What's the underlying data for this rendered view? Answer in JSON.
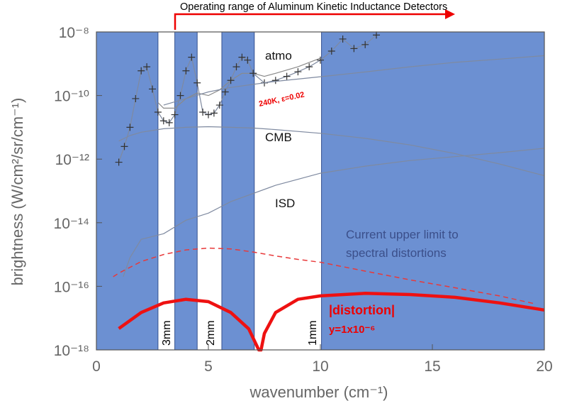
{
  "chart_data": {
    "type": "line",
    "xlabel": "wavenumber (cm⁻¹)",
    "ylabel": "brightness (W/cm²/sr/cm⁻¹)",
    "xlim": [
      0,
      20
    ],
    "xticks": [
      0,
      5,
      10,
      15,
      20
    ],
    "ylim": [
      1e-18,
      1e-08
    ],
    "log_y": true,
    "yticks": [
      {
        "value": 1e-08,
        "label": "10⁻⁸"
      },
      {
        "value": 1e-10,
        "label": "10⁻¹⁰"
      },
      {
        "value": 1e-12,
        "label": "10⁻¹²"
      },
      {
        "value": 1e-14,
        "label": "10⁻¹⁴"
      },
      {
        "value": 1e-16,
        "label": "10⁻¹⁶"
      },
      {
        "value": 1e-18,
        "label": "10⁻¹⁸"
      }
    ],
    "bands": {
      "color": "#6c90d2",
      "ranges": [
        [
          0,
          2.75
        ],
        [
          3.5,
          4.5
        ],
        [
          5.6,
          7.05
        ],
        [
          10.05,
          20
        ]
      ]
    },
    "band_labels": [
      "3mm",
      "2mm",
      "1mm"
    ],
    "annotations": [
      "Operating range of Aluminum Kinetic Inductance Detectors",
      "atmo",
      "CMB",
      "ISD",
      "Current upper limit to",
      "spectral distortions",
      "240K, ε=0.02",
      "|distortion|",
      "y=1x10⁻⁶"
    ],
    "series": [
      {
        "color": "#8a8a8a",
        "width": 1.2,
        "x": [
          2.75,
          3,
          3.5,
          4,
          4.5,
          5,
          5.5,
          6,
          6.5,
          7,
          7.5,
          8,
          9,
          10
        ],
        "values": [
          6e-11,
          4e-11,
          4e-11,
          8e-11,
          1.2e-10,
          1e-10,
          1.5e-10,
          3e-10,
          5e-10,
          5e-10,
          4e-10,
          5e-10,
          8e-10,
          1.5e-09
        ]
      },
      {
        "color": "#7f8aa0",
        "width": 1.2,
        "marker": "+",
        "x": [
          1,
          1.25,
          1.5,
          1.75,
          2,
          2.25,
          2.5,
          2.75,
          3,
          3.25,
          3.5,
          3.75,
          4,
          4.25,
          4.5,
          4.75,
          5,
          5.25,
          5.5,
          5.75,
          6,
          6.25,
          6.5,
          6.75,
          7,
          7.5,
          8,
          8.5,
          9,
          9.5,
          10,
          10.5,
          11,
          11.5,
          12,
          12.5
        ],
        "values": [
          8e-13,
          2.5e-12,
          1e-11,
          8e-11,
          6e-10,
          8e-10,
          1.6e-10,
          3e-11,
          1.6e-11,
          1.4e-11,
          2.5e-11,
          1e-10,
          6e-10,
          1.6e-09,
          2.5e-10,
          3e-11,
          2.5e-11,
          2.8e-11,
          5e-11,
          1.3e-10,
          3e-10,
          8e-10,
          1.6e-09,
          1.3e-09,
          5e-10,
          2.5e-10,
          3e-10,
          4e-10,
          5.6e-10,
          8e-10,
          1.3e-09,
          2.5e-09,
          6e-09,
          3e-09,
          4e-09,
          8e-09
        ]
      },
      {
        "color": "#7f8aa0",
        "width": 1.2,
        "x": [
          3,
          4,
          5,
          6,
          8,
          10,
          12,
          14,
          16,
          18,
          20
        ],
        "values": [
          5e-11,
          8e-11,
          1.3e-10,
          1.8e-10,
          2.8e-10,
          3.9e-10,
          5.5e-10,
          8e-10,
          1.1e-09,
          1.4e-09,
          1.8e-09
        ]
      },
      {
        "color": "#7f8aa0",
        "width": 1.2,
        "x": [
          1,
          1.5,
          2,
          3,
          4,
          5,
          6,
          7,
          8,
          10,
          12,
          14,
          16,
          18,
          20
        ],
        "values": [
          3.7e-12,
          5.5e-12,
          7e-12,
          9e-12,
          1e-11,
          1.05e-11,
          1e-11,
          9.5e-12,
          8.5e-12,
          6.5e-12,
          4.5e-12,
          2.8e-12,
          1.5e-12,
          7e-13,
          3e-13
        ]
      },
      {
        "color": "#7f8aa0",
        "width": 1.2,
        "x": [
          1.2,
          1.5,
          2,
          3,
          4,
          5,
          6,
          8,
          10,
          12,
          14,
          16,
          18,
          20
        ],
        "values": [
          2e-16,
          8e-16,
          3e-15,
          4.5e-15,
          1.2e-14,
          2e-14,
          4.6e-14,
          1.5e-13,
          3.6e-13,
          6e-13,
          9e-13,
          1.2e-12,
          1.6e-12,
          2.2e-12
        ]
      },
      {
        "color": "#e8393a",
        "width": 1.5,
        "dash": true,
        "x": [
          0.75,
          1,
          2,
          3,
          4,
          5,
          6,
          7,
          8,
          9,
          10,
          12,
          14,
          16,
          18,
          19.5
        ],
        "values": [
          2e-16,
          2.6e-16,
          6e-16,
          1e-15,
          1.4e-15,
          1.6e-15,
          1.5e-15,
          1.2e-15,
          9e-16,
          7e-16,
          5.7e-16,
          3e-16,
          1.6e-16,
          9e-17,
          5e-17,
          2.9e-17
        ]
      },
      {
        "color": "#ee1111",
        "width": 4.5,
        "x": [
          1,
          2,
          3,
          4,
          5,
          6,
          6.8,
          7.25,
          7.35,
          7.5,
          8,
          9,
          10,
          12,
          14,
          16,
          18,
          20
        ],
        "values": [
          4.7e-18,
          1.5e-17,
          3e-17,
          3.9e-17,
          3.3e-17,
          1.5e-17,
          4.6e-18,
          1e-18,
          1e-18,
          3.3e-18,
          1.5e-17,
          3.9e-17,
          5e-17,
          6e-17,
          5.5e-17,
          4.5e-17,
          3e-17,
          1.8e-17
        ]
      }
    ]
  }
}
